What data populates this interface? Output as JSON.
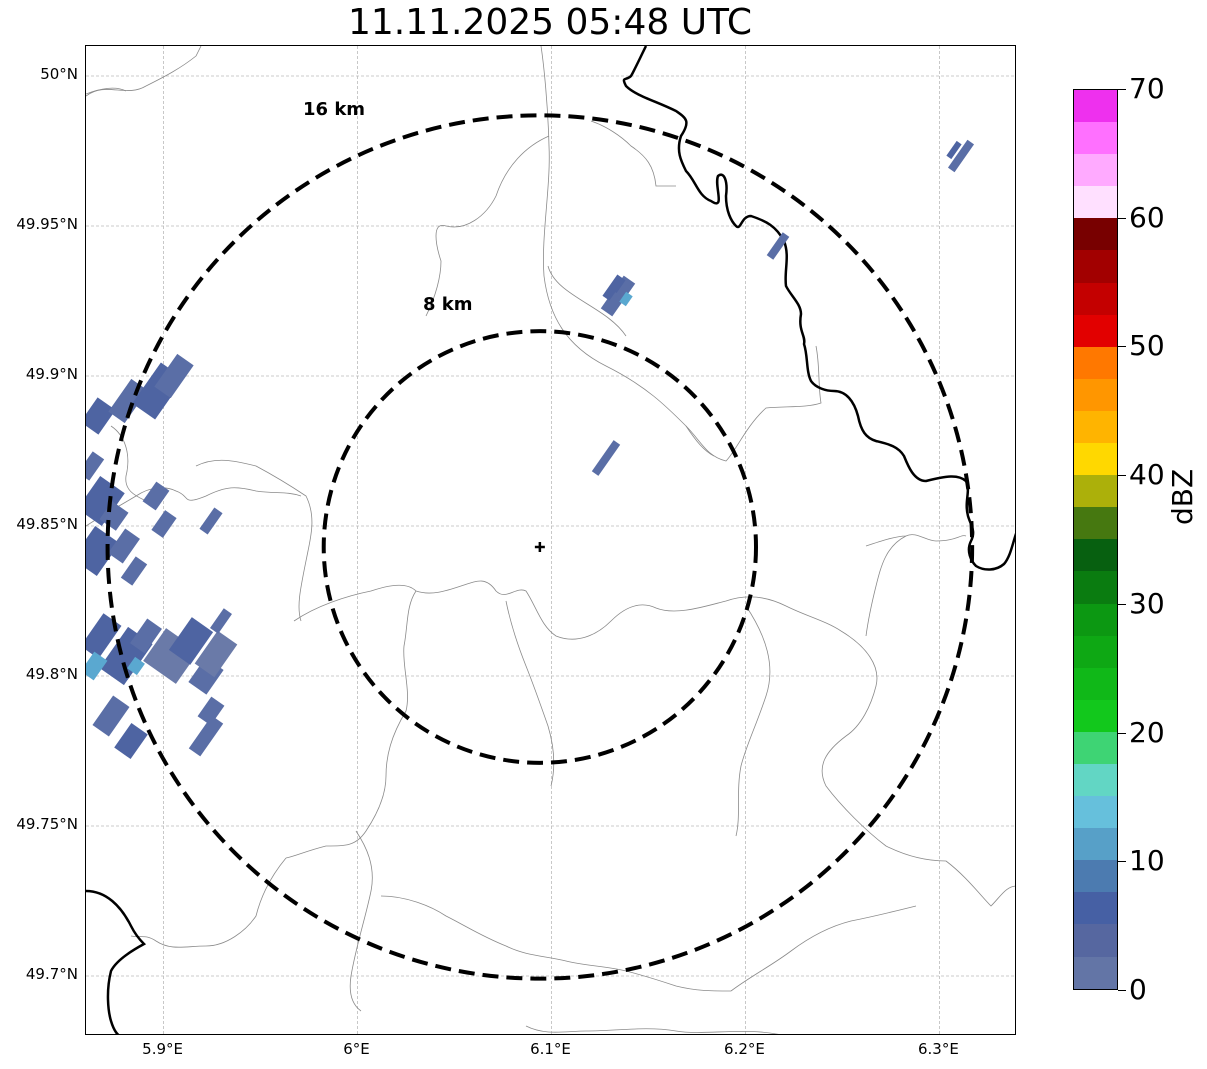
{
  "title": "11.11.2025 05:48 UTC",
  "map": {
    "lon_range": [
      5.86,
      6.34
    ],
    "lat_range": [
      49.68,
      50.01
    ],
    "lat_ticks": [
      {
        "value": 50.0,
        "label": "50°N"
      },
      {
        "value": 49.95,
        "label": "49.95°N"
      },
      {
        "value": 49.9,
        "label": "49.9°N"
      },
      {
        "value": 49.85,
        "label": "49.85°N"
      },
      {
        "value": 49.8,
        "label": "49.8°N"
      },
      {
        "value": 49.75,
        "label": "49.75°N"
      },
      {
        "value": 49.7,
        "label": "49.7°N"
      }
    ],
    "lon_ticks": [
      {
        "value": 5.9,
        "label": "5.9°E"
      },
      {
        "value": 6.0,
        "label": "6°E"
      },
      {
        "value": 6.1,
        "label": "6.1°E"
      },
      {
        "value": 6.2,
        "label": "6.2°E"
      },
      {
        "value": 6.3,
        "label": "6.3°E"
      }
    ],
    "radar_site": {
      "lon": 6.094,
      "lat": 49.843,
      "marker": "plus-icon"
    },
    "rings": [
      {
        "label": "8 km",
        "radius_km": 8
      },
      {
        "label": "16 km",
        "radius_km": 16
      }
    ],
    "gridlines": true
  },
  "colorbar": {
    "label": "dBZ",
    "min": 0,
    "max": 70,
    "tick_values": [
      0,
      10,
      20,
      30,
      40,
      50,
      60,
      70
    ],
    "tick_labels": [
      "0",
      "10",
      "20",
      "30",
      "40",
      "50",
      "60",
      "70"
    ],
    "colors": [
      "#6375a6",
      "#5667a0",
      "#4660a4",
      "#4c7bb0",
      "#57a0c8",
      "#66c0dc",
      "#62d6c4",
      "#3ed474",
      "#12c81c",
      "#10b818",
      "#0ea814",
      "#0c9812",
      "#0a7c10",
      "#076010",
      "#467810",
      "#acb00a",
      "#ffd800",
      "#ffb400",
      "#ff9600",
      "#ff7800",
      "#e20000",
      "#c40000",
      "#a20000",
      "#780000",
      "#ffe0ff",
      "#ffaaff",
      "#ff70ff",
      "#ee30ee"
    ]
  }
}
